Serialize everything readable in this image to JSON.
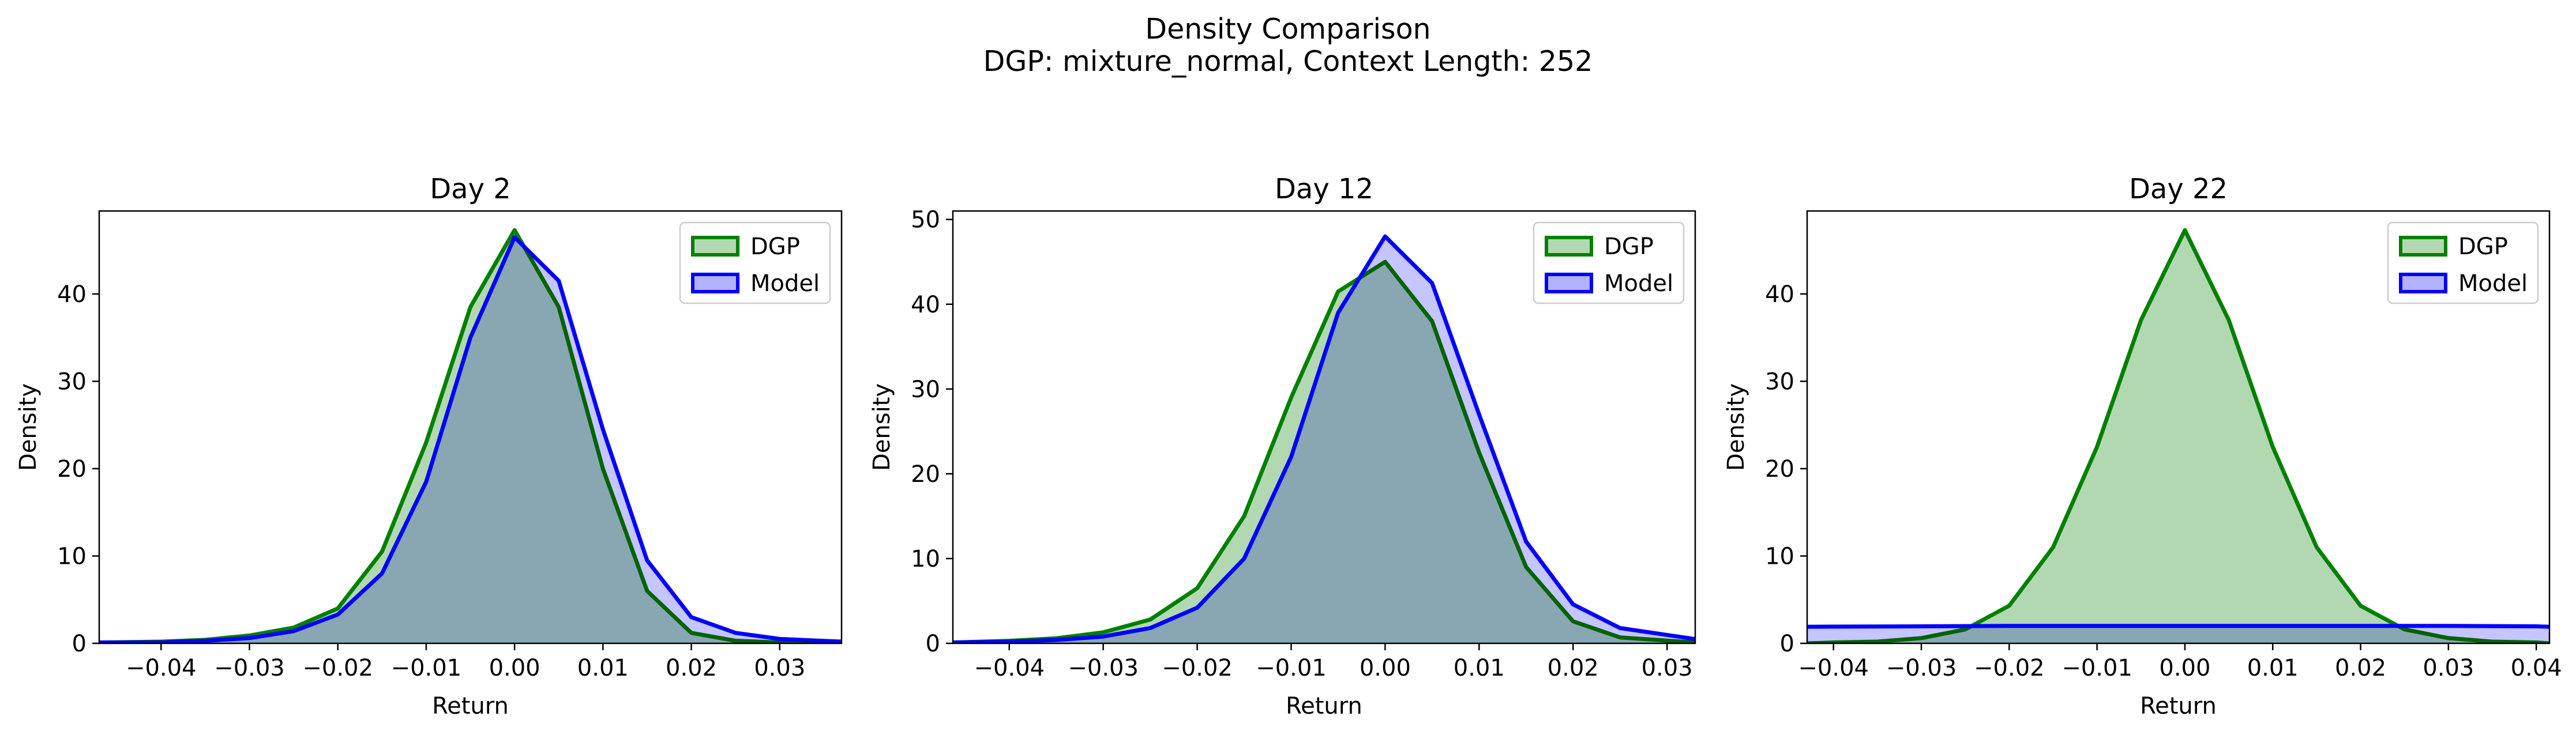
{
  "figure": {
    "title": "Density Comparison",
    "subtitle": "DGP: mixture_normal, Context Length: 252"
  },
  "colors": {
    "dgp_line": "#008000",
    "dgp_fill": "#b2d8b2",
    "model_line": "#0000ff",
    "model_fill": "#b2b2ff",
    "overlap_fill": "#7f99c8"
  },
  "chart_data": [
    {
      "type": "area",
      "title": "Day 2",
      "xlabel": "Return",
      "ylabel": "Density",
      "xlim": [
        -0.047,
        0.037
      ],
      "ylim": [
        0,
        49.5
      ],
      "xticks": [
        -0.04,
        -0.03,
        -0.02,
        -0.01,
        0.0,
        0.01,
        0.02,
        0.03
      ],
      "xtick_labels": [
        "−0.04",
        "−0.03",
        "−0.02",
        "−0.01",
        "0.00",
        "0.01",
        "0.02",
        "0.03"
      ],
      "yticks": [
        0,
        10,
        20,
        30,
        40
      ],
      "ytick_labels": [
        "0",
        "10",
        "20",
        "30",
        "40"
      ],
      "legend": {
        "location": "upper right",
        "entries": [
          "DGP",
          "Model"
        ]
      },
      "series": [
        {
          "name": "DGP",
          "x": [
            -0.047,
            -0.04,
            -0.035,
            -0.03,
            -0.025,
            -0.02,
            -0.015,
            -0.01,
            -0.005,
            0.0,
            0.005,
            0.01,
            0.015,
            0.02,
            0.025,
            0.03,
            0.037
          ],
          "values": [
            0.1,
            0.2,
            0.4,
            0.9,
            1.8,
            4.0,
            10.5,
            23.0,
            38.5,
            47.3,
            38.5,
            20.0,
            6.0,
            1.2,
            0.3,
            0.1,
            0.0
          ]
        },
        {
          "name": "Model",
          "x": [
            -0.047,
            -0.04,
            -0.035,
            -0.03,
            -0.025,
            -0.02,
            -0.015,
            -0.01,
            -0.005,
            0.0,
            0.005,
            0.01,
            0.015,
            0.02,
            0.025,
            0.03,
            0.037
          ],
          "values": [
            0.1,
            0.1,
            0.3,
            0.6,
            1.4,
            3.3,
            8.0,
            18.5,
            35.0,
            46.5,
            41.5,
            24.5,
            9.5,
            3.0,
            1.2,
            0.5,
            0.2
          ]
        }
      ]
    },
    {
      "type": "area",
      "title": "Day 12",
      "xlabel": "Return",
      "ylabel": "Density",
      "xlim": [
        -0.046,
        0.033
      ],
      "ylim": [
        0,
        51
      ],
      "xticks": [
        -0.04,
        -0.03,
        -0.02,
        -0.01,
        0.0,
        0.01,
        0.02,
        0.03
      ],
      "xtick_labels": [
        "−0.04",
        "−0.03",
        "−0.02",
        "−0.01",
        "0.00",
        "0.01",
        "0.02",
        "0.03"
      ],
      "yticks": [
        0,
        10,
        20,
        30,
        40,
        50
      ],
      "ytick_labels": [
        "0",
        "10",
        "20",
        "30",
        "40",
        "50"
      ],
      "legend": {
        "location": "upper right",
        "entries": [
          "DGP",
          "Model"
        ]
      },
      "series": [
        {
          "name": "DGP",
          "x": [
            -0.046,
            -0.04,
            -0.035,
            -0.03,
            -0.025,
            -0.02,
            -0.015,
            -0.01,
            -0.005,
            0.0,
            0.005,
            0.01,
            0.015,
            0.02,
            0.025,
            0.033
          ],
          "values": [
            0.1,
            0.3,
            0.6,
            1.3,
            2.8,
            6.5,
            15.0,
            29.0,
            41.5,
            45.0,
            38.0,
            22.5,
            9.0,
            2.6,
            0.7,
            0.1
          ]
        },
        {
          "name": "Model",
          "x": [
            -0.046,
            -0.04,
            -0.035,
            -0.03,
            -0.025,
            -0.02,
            -0.015,
            -0.01,
            -0.005,
            0.0,
            0.005,
            0.01,
            0.015,
            0.02,
            0.025,
            0.033
          ],
          "values": [
            0.1,
            0.2,
            0.4,
            0.8,
            1.8,
            4.2,
            10.0,
            22.0,
            39.0,
            48.0,
            42.5,
            27.0,
            12.0,
            4.6,
            1.8,
            0.5
          ]
        }
      ]
    },
    {
      "type": "area",
      "title": "Day 22",
      "xlabel": "Return",
      "ylabel": "Density",
      "xlim": [
        -0.043,
        0.0415
      ],
      "ylim": [
        0,
        49.5
      ],
      "xticks": [
        -0.04,
        -0.03,
        -0.02,
        -0.01,
        0.0,
        0.01,
        0.02,
        0.03,
        0.04
      ],
      "xtick_labels": [
        "−0.04",
        "−0.03",
        "−0.02",
        "−0.01",
        "0.00",
        "0.01",
        "0.02",
        "0.03",
        "0.04"
      ],
      "yticks": [
        0,
        10,
        20,
        30,
        40
      ],
      "ytick_labels": [
        "0",
        "10",
        "20",
        "30",
        "40"
      ],
      "legend": {
        "location": "upper right",
        "entries": [
          "DGP",
          "Model"
        ]
      },
      "series": [
        {
          "name": "DGP",
          "x": [
            -0.043,
            -0.04,
            -0.035,
            -0.03,
            -0.025,
            -0.02,
            -0.015,
            -0.01,
            -0.005,
            0.0,
            0.005,
            0.01,
            0.015,
            0.02,
            0.025,
            0.03,
            0.035,
            0.04,
            0.0415
          ],
          "values": [
            0.0,
            0.1,
            0.2,
            0.6,
            1.6,
            4.3,
            11.0,
            22.5,
            37.0,
            47.3,
            37.0,
            22.5,
            11.0,
            4.3,
            1.6,
            0.6,
            0.2,
            0.1,
            0.0
          ]
        },
        {
          "name": "Model",
          "x": [
            -0.043,
            -0.03,
            -0.02,
            -0.01,
            0.0,
            0.01,
            0.02,
            0.03,
            0.04,
            0.0415
          ],
          "values": [
            1.9,
            1.95,
            2.0,
            2.0,
            2.0,
            2.0,
            2.0,
            2.0,
            1.95,
            1.9
          ]
        }
      ]
    }
  ]
}
